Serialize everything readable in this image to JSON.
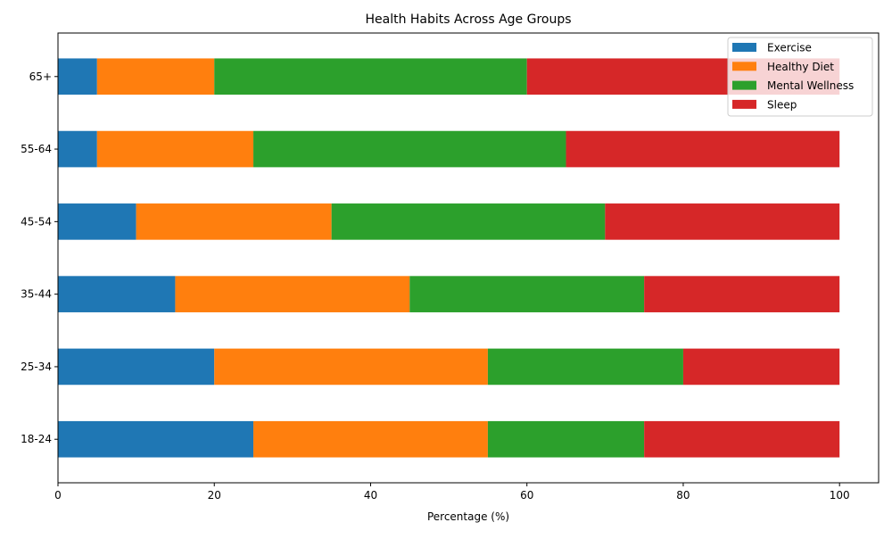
{
  "chart_data": {
    "type": "bar",
    "orientation": "horizontal",
    "stacked": true,
    "title": "Health Habits Across Age Groups",
    "xlabel": "Percentage (%)",
    "ylabel": "",
    "xlim": [
      0,
      105
    ],
    "xticks": [
      0,
      20,
      40,
      60,
      80,
      100
    ],
    "categories": [
      "18-24",
      "25-34",
      "35-44",
      "45-54",
      "55-64",
      "65+"
    ],
    "series": [
      {
        "name": "Exercise",
        "color": "#1f77b4",
        "values": [
          25,
          20,
          15,
          10,
          5,
          5
        ]
      },
      {
        "name": "Healthy Diet",
        "color": "#ff7f0e",
        "values": [
          30,
          35,
          30,
          25,
          20,
          15
        ]
      },
      {
        "name": "Mental Wellness",
        "color": "#2ca02c",
        "values": [
          20,
          25,
          30,
          35,
          40,
          40
        ]
      },
      {
        "name": "Sleep",
        "color": "#d62728",
        "values": [
          25,
          20,
          25,
          30,
          35,
          40
        ]
      }
    ],
    "grid": false,
    "legend_position": "top-right"
  }
}
